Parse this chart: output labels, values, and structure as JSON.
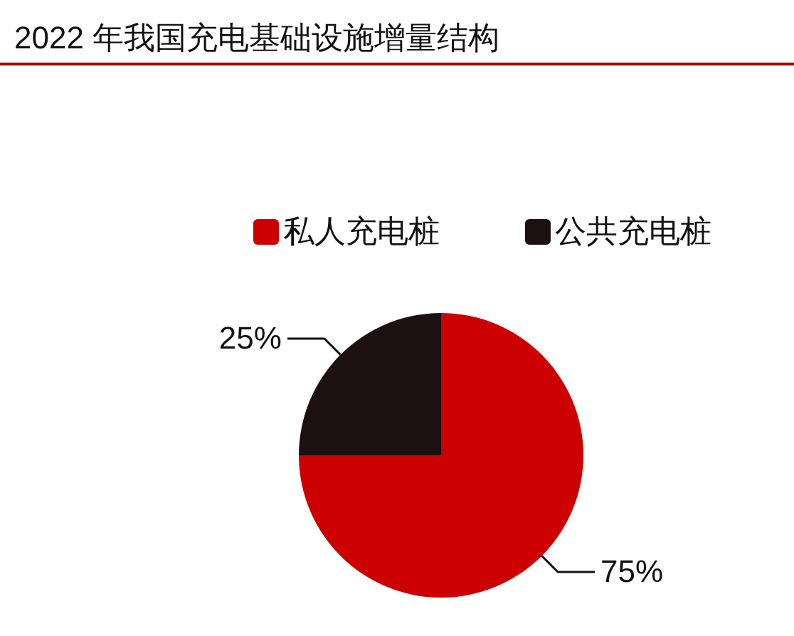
{
  "chart_data": {
    "type": "pie",
    "title": "2022 年我国充电基础设施增量结构",
    "categories": [
      "私人充电桩",
      "公共充电桩"
    ],
    "values": [
      75,
      25
    ],
    "colors": [
      "#cc0000",
      "#1c1012"
    ],
    "value_labels": [
      "75%",
      "25%"
    ],
    "legend": "top"
  }
}
